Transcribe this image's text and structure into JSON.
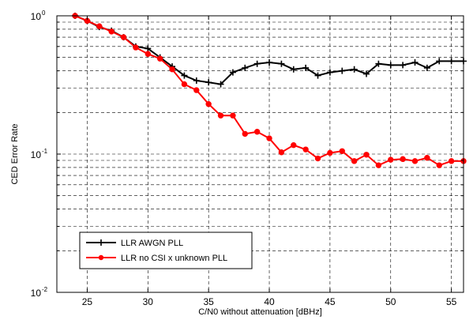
{
  "chart_data": {
    "type": "line",
    "xlabel": "C/N0 without attenuation [dBHz]",
    "ylabel": "CED Error Rate",
    "xlim": [
      22.5,
      56
    ],
    "ylim": [
      0.01,
      1
    ],
    "yscale": "log",
    "grid": true,
    "legend_position": "bottom-left",
    "x_ticks": [
      25,
      30,
      35,
      40,
      45,
      50,
      55
    ],
    "y_ticks": [
      {
        "base": "10",
        "exp": "-2",
        "value": 0.01
      },
      {
        "base": "10",
        "exp": "-1",
        "value": 0.1
      },
      {
        "base": "10",
        "exp": "0",
        "value": 1
      }
    ],
    "x": [
      24,
      25,
      26,
      27,
      28,
      29,
      30,
      31,
      32,
      33,
      34,
      35,
      36,
      37,
      38,
      39,
      40,
      41,
      42,
      43,
      44,
      45,
      46,
      47,
      48,
      49,
      50,
      51,
      52,
      53,
      54,
      55,
      56
    ],
    "series": [
      {
        "name": "LLR AWGN PLL",
        "color": "#000000",
        "marker": "plus",
        "values": [
          1.0,
          0.92,
          0.83,
          0.78,
          0.7,
          0.6,
          0.58,
          0.5,
          0.43,
          0.37,
          0.34,
          0.33,
          0.32,
          0.39,
          0.42,
          0.45,
          0.46,
          0.45,
          0.41,
          0.42,
          0.37,
          0.39,
          0.4,
          0.41,
          0.38,
          0.45,
          0.44,
          0.44,
          0.46,
          0.42,
          0.47,
          0.47,
          0.47
        ]
      },
      {
        "name": "LLR no CSI x unknown PLL",
        "color": "#ff0000",
        "marker": "circle",
        "values": [
          1.0,
          0.92,
          0.84,
          0.77,
          0.7,
          0.59,
          0.53,
          0.49,
          0.41,
          0.32,
          0.29,
          0.23,
          0.19,
          0.19,
          0.14,
          0.145,
          0.13,
          0.103,
          0.116,
          0.108,
          0.093,
          0.102,
          0.105,
          0.089,
          0.099,
          0.083,
          0.091,
          0.092,
          0.089,
          0.094,
          0.083,
          0.089,
          0.089
        ]
      }
    ]
  }
}
